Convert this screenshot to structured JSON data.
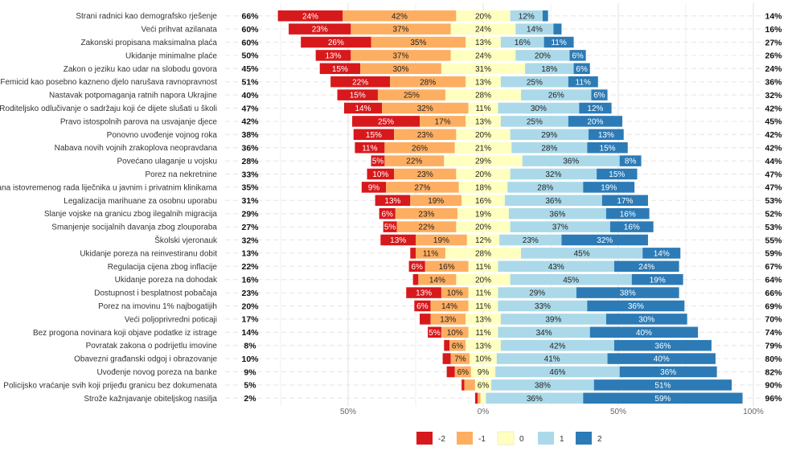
{
  "chart_data": {
    "type": "bar",
    "subtype": "diverging-stacked-100",
    "levels": [
      "-2",
      "-1",
      "0",
      "1",
      "2"
    ],
    "colors": {
      "-2": "#d7191c",
      "-1": "#fdae61",
      "0": "#ffffbf",
      "1": "#abd9e9",
      "2": "#2c7bb6"
    },
    "grid": true,
    "legend_position": "bottom",
    "x_ticks": [
      {
        "value": -50,
        "label": "50%"
      },
      {
        "value": 0,
        "label": "0%"
      },
      {
        "value": 50,
        "label": "50%"
      },
      {
        "value": 100,
        "label": "100%"
      }
    ],
    "xlim": [
      -80,
      100
    ],
    "categories": [
      "Strani radnici kao demografsko rješenje",
      "Veći prihvat azilanata",
      "Zakonski propisana maksimalna plaća",
      "Ukidanje minimalne plaće",
      "Zakon o jeziku kao udar na slobodu govora",
      "Femicid kao posebno kazneno djelo narušava ravnopravnost",
      "Nastavak potpomaganja ratnih napora Ukrajine",
      "Roditeljsko odlučivanje o sadržaju koji će dijete slušati u školi",
      "Pravo istospolnih parova na usvajanje djece",
      "Ponovno uvođenje vojnog roka",
      "Nabava novih vojnih zrakoplova neopravdana",
      "Povećano ulaganje u vojsku",
      "Porez na nekretnine",
      "Zabrana istovremenog rada liječnika u javnim i privatnim klinikama",
      "Legalizacija marihuane za osobnu uporabu",
      "Slanje vojske na granicu zbog ilegalnih migracija",
      "Smanjenje socijalnih davanja zbog zlouporaba",
      "Školski vjeronauk",
      "Ukidanje poreza na reinvestiranu dobit",
      "Regulacija cijena zbog inflacije",
      "Ukidanje poreza na dohodak",
      "Dostupnost i besplatnost pobačaja",
      "Porez na imovinu 1% najbogatijih",
      "Veći poljoprivredni poticaji",
      "Bez progona novinara koji objave podatke iz istrage",
      "Povratak zakona o podrijetlu imovine",
      "Obavezni građanski odgoj i obrazovanje",
      "Uvođenje novog poreza na banke",
      "Policijsko vraćanje svih koji prijeđu granicu bez dokumenata",
      "Strože kažnjavanje obiteljskog nasilja"
    ],
    "left_pct": [
      "66%",
      "60%",
      "60%",
      "50%",
      "45%",
      "51%",
      "40%",
      "47%",
      "42%",
      "38%",
      "36%",
      "28%",
      "33%",
      "35%",
      "31%",
      "29%",
      "27%",
      "32%",
      "13%",
      "22%",
      "16%",
      "23%",
      "20%",
      "17%",
      "14%",
      "8%",
      "10%",
      "9%",
      "5%",
      "2%"
    ],
    "right_pct": [
      "14%",
      "16%",
      "27%",
      "26%",
      "24%",
      "36%",
      "32%",
      "42%",
      "45%",
      "42%",
      "42%",
      "44%",
      "47%",
      "47%",
      "53%",
      "52%",
      "53%",
      "55%",
      "59%",
      "67%",
      "64%",
      "66%",
      "69%",
      "70%",
      "74%",
      "79%",
      "80%",
      "82%",
      "90%",
      "96%"
    ],
    "series": [
      {
        "name": "-2",
        "values": [
          24,
          23,
          26,
          13,
          15,
          22,
          15,
          14,
          25,
          15,
          11,
          5,
          10,
          9,
          13,
          6,
          5,
          13,
          2,
          6,
          2,
          13,
          6,
          4,
          5,
          2,
          3,
          3,
          1,
          1
        ]
      },
      {
        "name": "-1",
        "values": [
          42,
          37,
          35,
          37,
          30,
          28,
          25,
          32,
          17,
          23,
          26,
          22,
          23,
          27,
          19,
          23,
          22,
          19,
          11,
          16,
          14,
          10,
          14,
          13,
          10,
          6,
          7,
          6,
          4,
          1
        ]
      },
      {
        "name": "0",
        "values": [
          20,
          24,
          13,
          24,
          31,
          13,
          28,
          11,
          13,
          20,
          21,
          29,
          20,
          18,
          16,
          19,
          20,
          12,
          28,
          11,
          20,
          11,
          11,
          13,
          11,
          13,
          10,
          9,
          6,
          2
        ]
      },
      {
        "name": "1",
        "values": [
          12,
          14,
          16,
          20,
          18,
          25,
          26,
          30,
          25,
          29,
          28,
          36,
          32,
          28,
          36,
          36,
          37,
          23,
          45,
          43,
          45,
          29,
          33,
          39,
          34,
          42,
          41,
          46,
          38,
          36
        ]
      },
      {
        "name": "2",
        "values": [
          2,
          3,
          11,
          6,
          6,
          11,
          6,
          12,
          20,
          13,
          15,
          8,
          15,
          19,
          17,
          16,
          16,
          32,
          14,
          24,
          19,
          38,
          36,
          30,
          40,
          36,
          40,
          36,
          51,
          59
        ]
      }
    ]
  }
}
